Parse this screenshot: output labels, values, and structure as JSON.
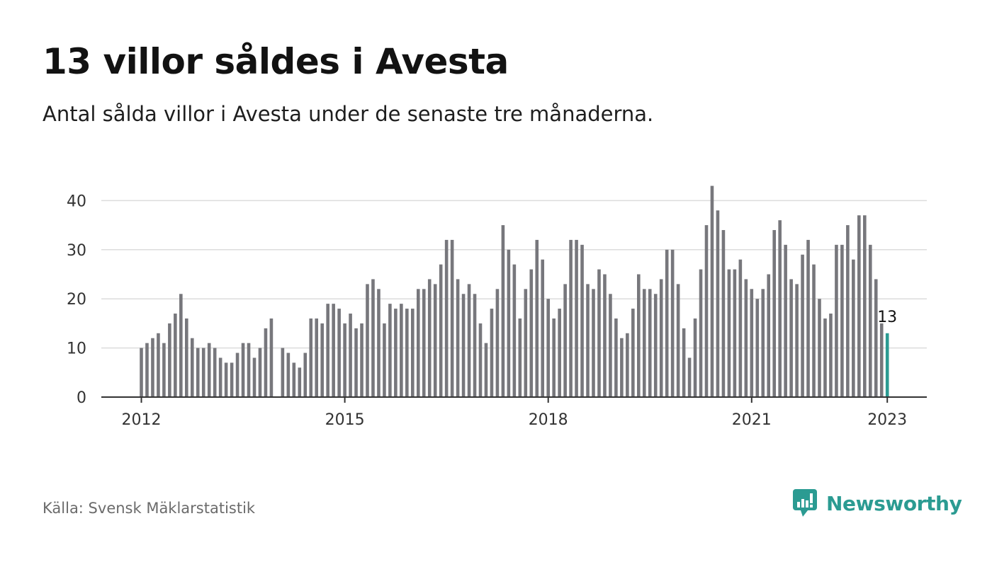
{
  "header": {
    "title": "13 villor såldes i Avesta",
    "subtitle": "Antal sålda villor i Avesta under de senaste tre månaderna."
  },
  "footer": {
    "source": "Källa: Svensk Mäklarstatistik",
    "brand": "Newsworthy",
    "brand_icon": "newsworthy-logo-icon"
  },
  "colors": {
    "bar": "#77777c",
    "highlight": "#2b9b92",
    "grid": "#dcdcdc",
    "axis": "#333333"
  },
  "chart_data": {
    "type": "bar",
    "title": "13 villor såldes i Avesta",
    "subtitle": "Antal sålda villor i Avesta under de senaste tre månaderna.",
    "xlabel": "",
    "ylabel": "",
    "ylim": [
      0,
      45
    ],
    "yticks": [
      0,
      10,
      20,
      30,
      40
    ],
    "grid": true,
    "first_month": "2012-01",
    "xtick_labels": [
      {
        "label": "2012",
        "month": "2012-01"
      },
      {
        "label": "2015",
        "month": "2015-01"
      },
      {
        "label": "2018",
        "month": "2018-01"
      },
      {
        "label": "2021",
        "month": "2021-01"
      },
      {
        "label": "2023",
        "month": "2023-01"
      }
    ],
    "values": [
      10,
      11,
      12,
      13,
      11,
      15,
      17,
      21,
      16,
      12,
      10,
      10,
      11,
      10,
      8,
      7,
      7,
      9,
      11,
      11,
      8,
      10,
      14,
      16,
      null,
      10,
      9,
      7,
      6,
      9,
      16,
      16,
      15,
      19,
      19,
      18,
      15,
      17,
      14,
      15,
      23,
      24,
      22,
      15,
      19,
      18,
      19,
      18,
      18,
      22,
      22,
      24,
      23,
      27,
      32,
      32,
      24,
      21,
      23,
      21,
      15,
      11,
      18,
      22,
      35,
      30,
      27,
      16,
      22,
      26,
      32,
      28,
      20,
      16,
      18,
      23,
      32,
      32,
      31,
      23,
      22,
      26,
      25,
      21,
      16,
      12,
      13,
      18,
      25,
      22,
      22,
      21,
      24,
      30,
      30,
      23,
      14,
      8,
      16,
      26,
      35,
      43,
      38,
      34,
      26,
      26,
      28,
      24,
      22,
      20,
      22,
      25,
      34,
      36,
      31,
      24,
      23,
      29,
      32,
      27,
      20,
      16,
      17,
      31,
      31,
      35,
      28,
      37,
      37,
      31,
      24,
      15,
      13
    ],
    "highlight_last": true,
    "annotation": {
      "text": "13",
      "month": "2023-01"
    }
  }
}
